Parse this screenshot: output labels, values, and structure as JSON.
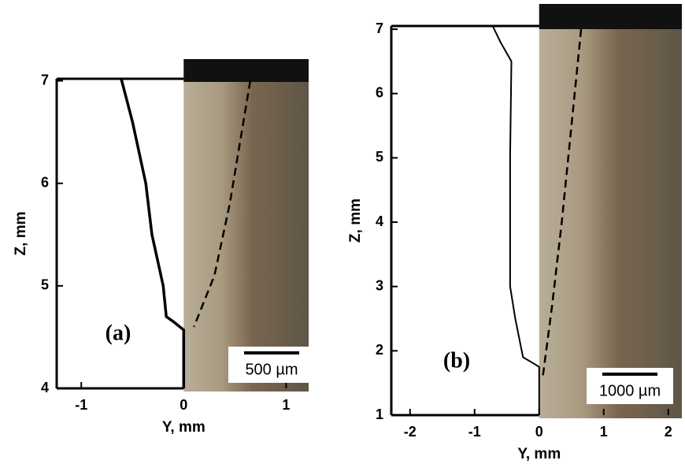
{
  "chart_data": [
    {
      "type": "line",
      "panel_label": "(a)",
      "xlabel": "Y, mm",
      "ylabel": "Z, mm",
      "scale_bar": "500 µm",
      "xlim": [
        -1.24,
        1.22
      ],
      "ylim": [
        4,
        7.02
      ],
      "xticks": [
        -1,
        0,
        1
      ],
      "yticks": [
        4,
        5,
        6,
        7
      ],
      "series": [
        {
          "color": "#000000",
          "style": "solid",
          "x": [
            -0.61,
            -0.5,
            -0.37,
            -0.31,
            -0.2,
            -0.17,
            -0.1,
            0,
            0
          ],
          "values": [
            7.02,
            6.6,
            6.0,
            5.5,
            5.0,
            4.7,
            4.65,
            4.57,
            4.0
          ]
        },
        {
          "color": "#000000",
          "style": "dashed",
          "x": [
            0.65,
            0.55,
            0.45,
            0.3,
            0.1
          ],
          "values": [
            7.0,
            6.4,
            5.8,
            5.1,
            4.6
          ]
        }
      ]
    },
    {
      "type": "line",
      "panel_label": "(b)",
      "xlabel": "Y, mm",
      "ylabel": "Z, mm",
      "scale_bar": "1000 µm",
      "xlim": [
        -2.29,
        2.21
      ],
      "ylim": [
        1,
        7.05
      ],
      "xticks": [
        -2,
        -1,
        0,
        1,
        2
      ],
      "yticks": [
        1,
        2,
        3,
        4,
        5,
        6,
        7
      ],
      "series": [
        {
          "color": "#000000",
          "style": "solid",
          "x": [
            -0.72,
            -0.6,
            -0.43,
            -0.45,
            -0.45,
            -0.37,
            -0.25,
            -0.08,
            0,
            0
          ],
          "values": [
            7.05,
            6.8,
            6.5,
            5.0,
            3.0,
            2.5,
            1.9,
            1.8,
            1.75,
            1.0
          ]
        },
        {
          "color": "#000000",
          "style": "dashed",
          "x": [
            0.65,
            0.5,
            0.35,
            0.2,
            0.05
          ],
          "values": [
            7.0,
            5.5,
            4.0,
            2.7,
            1.55
          ]
        }
      ]
    }
  ]
}
